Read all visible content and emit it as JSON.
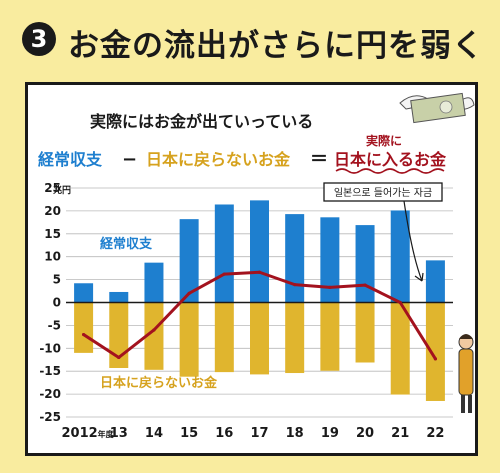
{
  "heading": {
    "number": "3",
    "title": "お金の流出がさらに円を弱く"
  },
  "subtitle": "実際にはお金が出ていっている",
  "equation": {
    "term1": "経常収支",
    "minus": "−",
    "term2": "日本に戻らないお金",
    "equals": "＝",
    "result_top": "実際に",
    "result": "日本に入るお金"
  },
  "callout": "일본으로 들어가는 자금",
  "colors": {
    "current_account": "#1e7fcf",
    "not_returning": "#e0b52e",
    "net_inflow": "#a3121e",
    "background": "#f9ec9f"
  },
  "chart_data": {
    "type": "bar",
    "unit": "兆円",
    "categories": [
      "2012年度",
      "13",
      "14",
      "15",
      "16",
      "17",
      "18",
      "19",
      "20",
      "21",
      "22"
    ],
    "ylim": [
      -25,
      25
    ],
    "yticks": [
      25,
      20,
      15,
      10,
      5,
      0,
      -5,
      -10,
      -15,
      -20,
      -25
    ],
    "grid": true,
    "series": [
      {
        "name": "経常収支",
        "kind": "bar",
        "color": "#1e7fcf",
        "values": [
          4.2,
          2.3,
          8.7,
          18.2,
          21.4,
          22.3,
          19.3,
          18.6,
          16.9,
          20.1,
          9.2
        ]
      },
      {
        "name": "日本に戻らないお金",
        "kind": "bar",
        "color": "#e0b52e",
        "values": [
          -11.0,
          -14.3,
          -14.7,
          -16.2,
          -15.2,
          -15.7,
          -15.4,
          -14.9,
          -13.1,
          -20.1,
          -21.5
        ]
      },
      {
        "name": "実際に日本に入るお金",
        "kind": "line",
        "color": "#a3121e",
        "values": [
          -7.0,
          -12.0,
          -6.0,
          2.0,
          6.2,
          6.6,
          3.9,
          3.3,
          3.8,
          0.0,
          -12.3
        ]
      }
    ]
  }
}
